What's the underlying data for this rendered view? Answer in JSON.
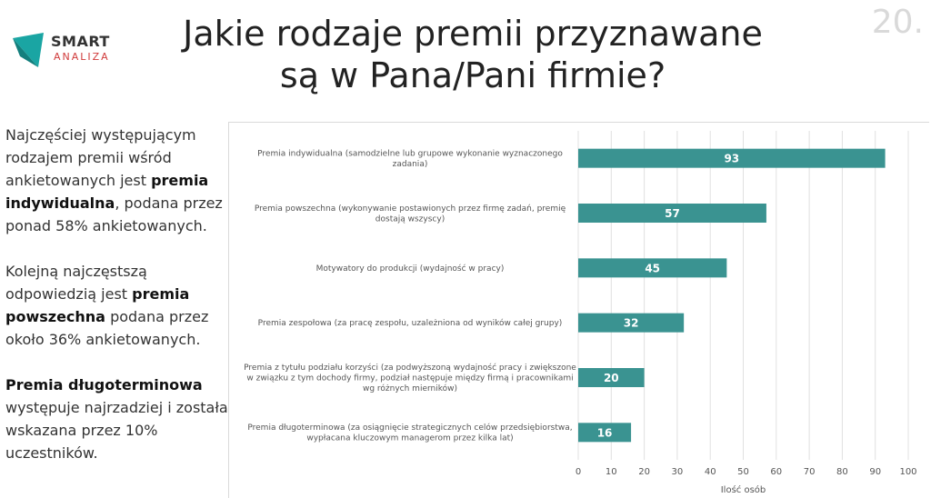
{
  "logo": {
    "line1": "SMART",
    "line2": "ANALIZA"
  },
  "slide_number": "20.",
  "title": {
    "line1": "Jakie rodzaje premii przyznawane",
    "line2": "są w Pana/Pani firmie?"
  },
  "sidebar": {
    "p1_before": "Najczęściej występującym rodzajem premii wśród ankietowanych jest ",
    "p1_bold": "premia indywidualna",
    "p1_after": ", podana przez ponad 58% ankietowanych.",
    "p2_before": "Kolejną najczęstszą odpowiedzią jest ",
    "p2_bold": "premia powszechna",
    "p2_after": " podana przez około 36% ankietowanych.",
    "p3_bold": "Premia długoterminowa",
    "p3_after": " występuje najrzadziej i została wskazana przez 10% uczestników."
  },
  "colors": {
    "bar": "#3a9391",
    "grid": "#e0e0e0",
    "text": "#555555",
    "logo_accent": "#1aa5a3",
    "logo_red": "#d03b3b"
  },
  "chart_data": {
    "type": "bar",
    "orientation": "horizontal",
    "categories": [
      [
        "Premia indywidualna (samodzielne lub grupowe wykonanie wyznaczonego",
        "zadania)"
      ],
      [
        "Premia powszechna (wykonywanie postawionych przez firmę zadań, premię",
        "dostają wszyscy)"
      ],
      [
        "Motywatory do produkcji (wydajność w pracy)"
      ],
      [
        "Premia zespołowa (za pracę zespołu, uzależniona od wyników całej grupy)"
      ],
      [
        "Premia z tytułu podziału korzyści (za podwyższoną wydajność pracy i zwiększone",
        "w związku z tym dochody firmy, podział następuje między firmą i pracownikami",
        "wg różnych mierników)"
      ],
      [
        "Premia długoterminowa (za osiągnięcie strategicznych celów przedsiębiorstwa,",
        "wypłacana kluczowym managerom przez kilka lat)"
      ]
    ],
    "values": [
      93,
      57,
      45,
      32,
      20,
      16
    ],
    "xlim": [
      0,
      100
    ],
    "xticks": [
      0,
      10,
      20,
      30,
      40,
      50,
      60,
      70,
      80,
      90,
      100
    ],
    "xlabel": "Ilość osób",
    "grid": true
  }
}
